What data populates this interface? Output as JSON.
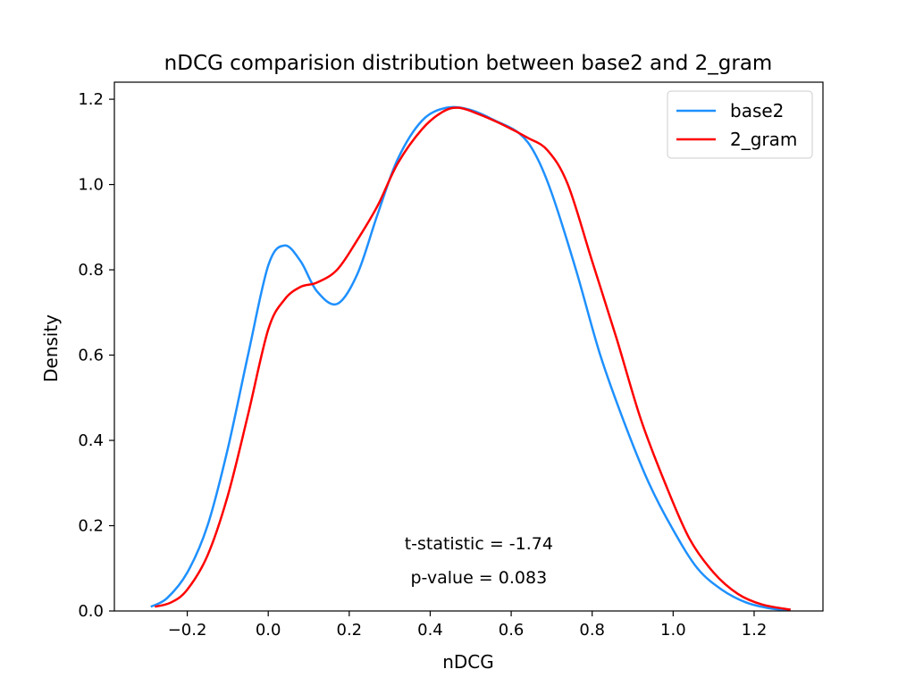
{
  "chart_data": {
    "type": "line",
    "title": "nDCG comparision distribution between base2 and 2_gram",
    "xlabel": "nDCG",
    "ylabel": "Density",
    "xlim": [
      -0.38,
      1.37
    ],
    "ylim": [
      0.0,
      1.24
    ],
    "xticks": [
      -0.2,
      0.0,
      0.2,
      0.4,
      0.6,
      0.8,
      1.0,
      1.2
    ],
    "xtick_labels": [
      "−0.2",
      "0.0",
      "0.2",
      "0.4",
      "0.6",
      "0.8",
      "1.0",
      "1.2"
    ],
    "yticks": [
      0.0,
      0.2,
      0.4,
      0.6,
      0.8,
      1.0,
      1.2
    ],
    "ytick_labels": [
      "0.0",
      "0.2",
      "0.4",
      "0.6",
      "0.8",
      "1.0",
      "1.2"
    ],
    "grid": false,
    "legend_position": "top-right",
    "series": [
      {
        "name": "base2",
        "color": "#1e90ff",
        "x": [
          -0.29,
          -0.25,
          -0.2,
          -0.15,
          -0.1,
          -0.05,
          0.0,
          0.04,
          0.08,
          0.12,
          0.17,
          0.22,
          0.27,
          0.32,
          0.38,
          0.44,
          0.5,
          0.56,
          0.62,
          0.66,
          0.7,
          0.76,
          0.82,
          0.88,
          0.94,
          1.0,
          1.06,
          1.12,
          1.18,
          1.24,
          1.29
        ],
        "y": [
          0.01,
          0.03,
          0.09,
          0.2,
          0.38,
          0.6,
          0.81,
          0.857,
          0.82,
          0.75,
          0.72,
          0.79,
          0.93,
          1.06,
          1.15,
          1.18,
          1.175,
          1.15,
          1.12,
          1.07,
          0.98,
          0.8,
          0.6,
          0.44,
          0.3,
          0.19,
          0.1,
          0.05,
          0.02,
          0.006,
          0.002
        ]
      },
      {
        "name": "2_gram",
        "color": "#ff0000",
        "x": [
          -0.28,
          -0.24,
          -0.2,
          -0.15,
          -0.1,
          -0.05,
          0.0,
          0.04,
          0.08,
          0.12,
          0.17,
          0.22,
          0.27,
          0.32,
          0.38,
          0.43,
          0.47,
          0.52,
          0.58,
          0.64,
          0.69,
          0.74,
          0.8,
          0.86,
          0.92,
          0.98,
          1.04,
          1.1,
          1.16,
          1.22,
          1.29
        ],
        "y": [
          0.01,
          0.02,
          0.05,
          0.13,
          0.27,
          0.46,
          0.66,
          0.73,
          0.76,
          0.77,
          0.8,
          0.87,
          0.95,
          1.05,
          1.13,
          1.17,
          1.18,
          1.165,
          1.14,
          1.11,
          1.08,
          1.0,
          0.82,
          0.64,
          0.45,
          0.3,
          0.17,
          0.09,
          0.04,
          0.015,
          0.003
        ]
      }
    ],
    "annotations": [
      {
        "text": "t-statistic = -1.74",
        "x": 0.52,
        "y": 0.145
      },
      {
        "text": "p-value = 0.083",
        "x": 0.52,
        "y": 0.065
      }
    ]
  }
}
